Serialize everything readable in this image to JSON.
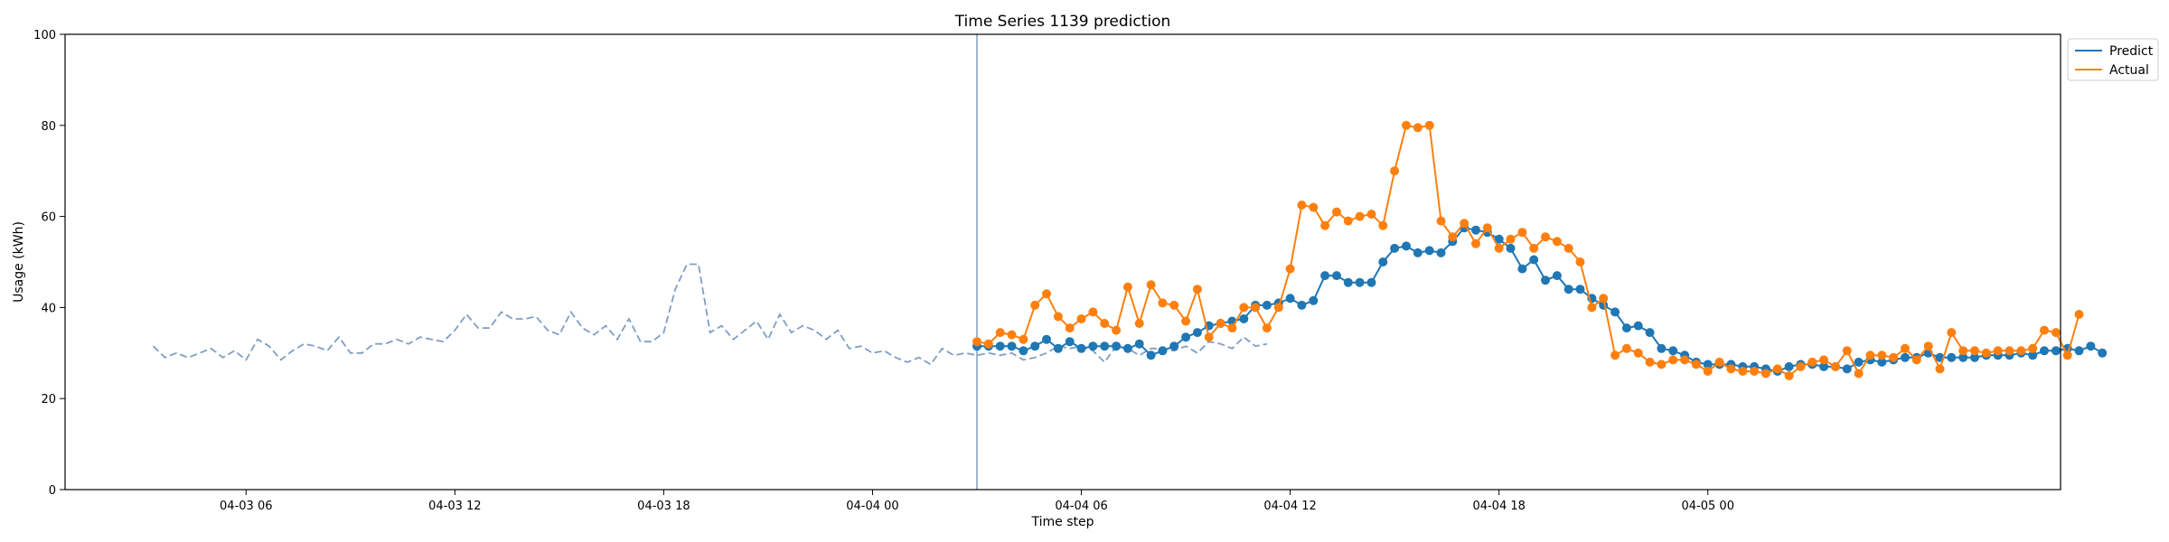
{
  "chart_data": {
    "type": "line",
    "title": "Time Series 1139 prediction",
    "xlabel": "Time step",
    "ylabel": "Usage (kWh)",
    "ylim": [
      0,
      100
    ],
    "yticks": [
      0,
      20,
      40,
      60,
      80,
      100
    ],
    "xlim": [
      -7.6,
      164.4
    ],
    "xticks": [
      {
        "pos": 8,
        "label": "04-03 06"
      },
      {
        "pos": 26,
        "label": "04-03 12"
      },
      {
        "pos": 44,
        "label": "04-03 18"
      },
      {
        "pos": 62,
        "label": "04-04 00"
      },
      {
        "pos": 80,
        "label": "04-04 06"
      },
      {
        "pos": 98,
        "label": "04-04 12"
      },
      {
        "pos": 116,
        "label": "04-04 18"
      },
      {
        "pos": 134,
        "label": "04-05 00"
      }
    ],
    "forecast_start": 71,
    "legend_position": "outside-top-right",
    "colors": {
      "predict": "#1f77b4",
      "actual": "#ff7f0e",
      "history": "#7f9ec4",
      "divider": "#7f9ec4"
    },
    "history": {
      "x_start": 0,
      "values": [
        31.5,
        29,
        30,
        29,
        30,
        31,
        29,
        30.5,
        28.5,
        33,
        31.5,
        28.5,
        30.5,
        32,
        31.5,
        30.5,
        33.5,
        30,
        30,
        32,
        32,
        33,
        32,
        33.5,
        33,
        32.5,
        35,
        38.5,
        35.5,
        35.5,
        39,
        37.5,
        37.5,
        38,
        35,
        34,
        39,
        35.5,
        34,
        36,
        33,
        37.5,
        32.5,
        32.5,
        34.5,
        44,
        49.5,
        49.5,
        34.5,
        36,
        33,
        35,
        37,
        33,
        38.5,
        34.5,
        36,
        35,
        33,
        35,
        31,
        31.5,
        30,
        30.5,
        29,
        28,
        29,
        27.5,
        31,
        29.5,
        30,
        29.5,
        30,
        29.5,
        30,
        28.5,
        29,
        30,
        31.5,
        31,
        31.5,
        30.5,
        28,
        31.5,
        31,
        29.5,
        31,
        31,
        30.5,
        31.5,
        30,
        32.5,
        32,
        31,
        33.5,
        31.5,
        32
      ]
    },
    "series": [
      {
        "name": "Predict",
        "x_start": 71,
        "values": [
          31.5,
          31.5,
          31.5,
          31.5,
          30.5,
          31.5,
          33,
          31,
          32.5,
          31,
          31.5,
          31.5,
          31.5,
          31,
          32,
          29.5,
          30.5,
          31.5,
          33.5,
          34.5,
          36,
          36.5,
          37,
          37.5,
          40.5,
          40.5,
          41,
          42,
          40.5,
          41.5,
          47,
          47,
          45.5,
          45.5,
          45.5,
          50,
          53,
          53.5,
          52,
          52.5,
          52,
          54.5,
          57.5,
          57,
          56.5,
          55,
          53,
          48.5,
          50.5,
          46,
          47,
          44,
          44,
          42,
          40.5,
          39,
          35.5,
          36,
          34.5,
          31,
          30.5,
          29.5,
          28,
          27.5,
          27.5,
          27.5,
          27,
          27,
          26.5,
          26,
          27,
          27.5,
          27.5,
          27,
          27,
          26.5,
          28,
          28.5,
          28,
          28.5,
          29,
          29,
          30,
          29,
          29,
          29,
          29,
          29.5,
          29.5,
          29.5,
          30,
          29.5,
          30.5,
          30.5,
          31,
          30.5,
          31.5,
          30
        ]
      },
      {
        "name": "Actual",
        "x_start": 71,
        "values": [
          32.5,
          32,
          34.5,
          34,
          33,
          40.5,
          43,
          38,
          35.5,
          37.5,
          39,
          36.5,
          35,
          44.5,
          36.5,
          45,
          41,
          40.5,
          37,
          44,
          33.5,
          36.5,
          35.5,
          40,
          40,
          35.5,
          40,
          48.5,
          62.5,
          62,
          58,
          61,
          59,
          60,
          60.5,
          58,
          70,
          80,
          79.5,
          80,
          59,
          55.5,
          58.5,
          54,
          57.5,
          53,
          55,
          56.5,
          53,
          55.5,
          54.5,
          53,
          50,
          40,
          42,
          29.5,
          31,
          30,
          28,
          27.5,
          28.5,
          28.5,
          27.5,
          26,
          28,
          26.5,
          26,
          26,
          25.5,
          26.5,
          25,
          27,
          28,
          28.5,
          27,
          30.5,
          25.5,
          29.5,
          29.5,
          29,
          31,
          28.5,
          31.5,
          26.5,
          34.5,
          30.5,
          30.5,
          30,
          30.5,
          30.5,
          30.5,
          31,
          35,
          34.5,
          29.5,
          38.5
        ]
      }
    ]
  }
}
